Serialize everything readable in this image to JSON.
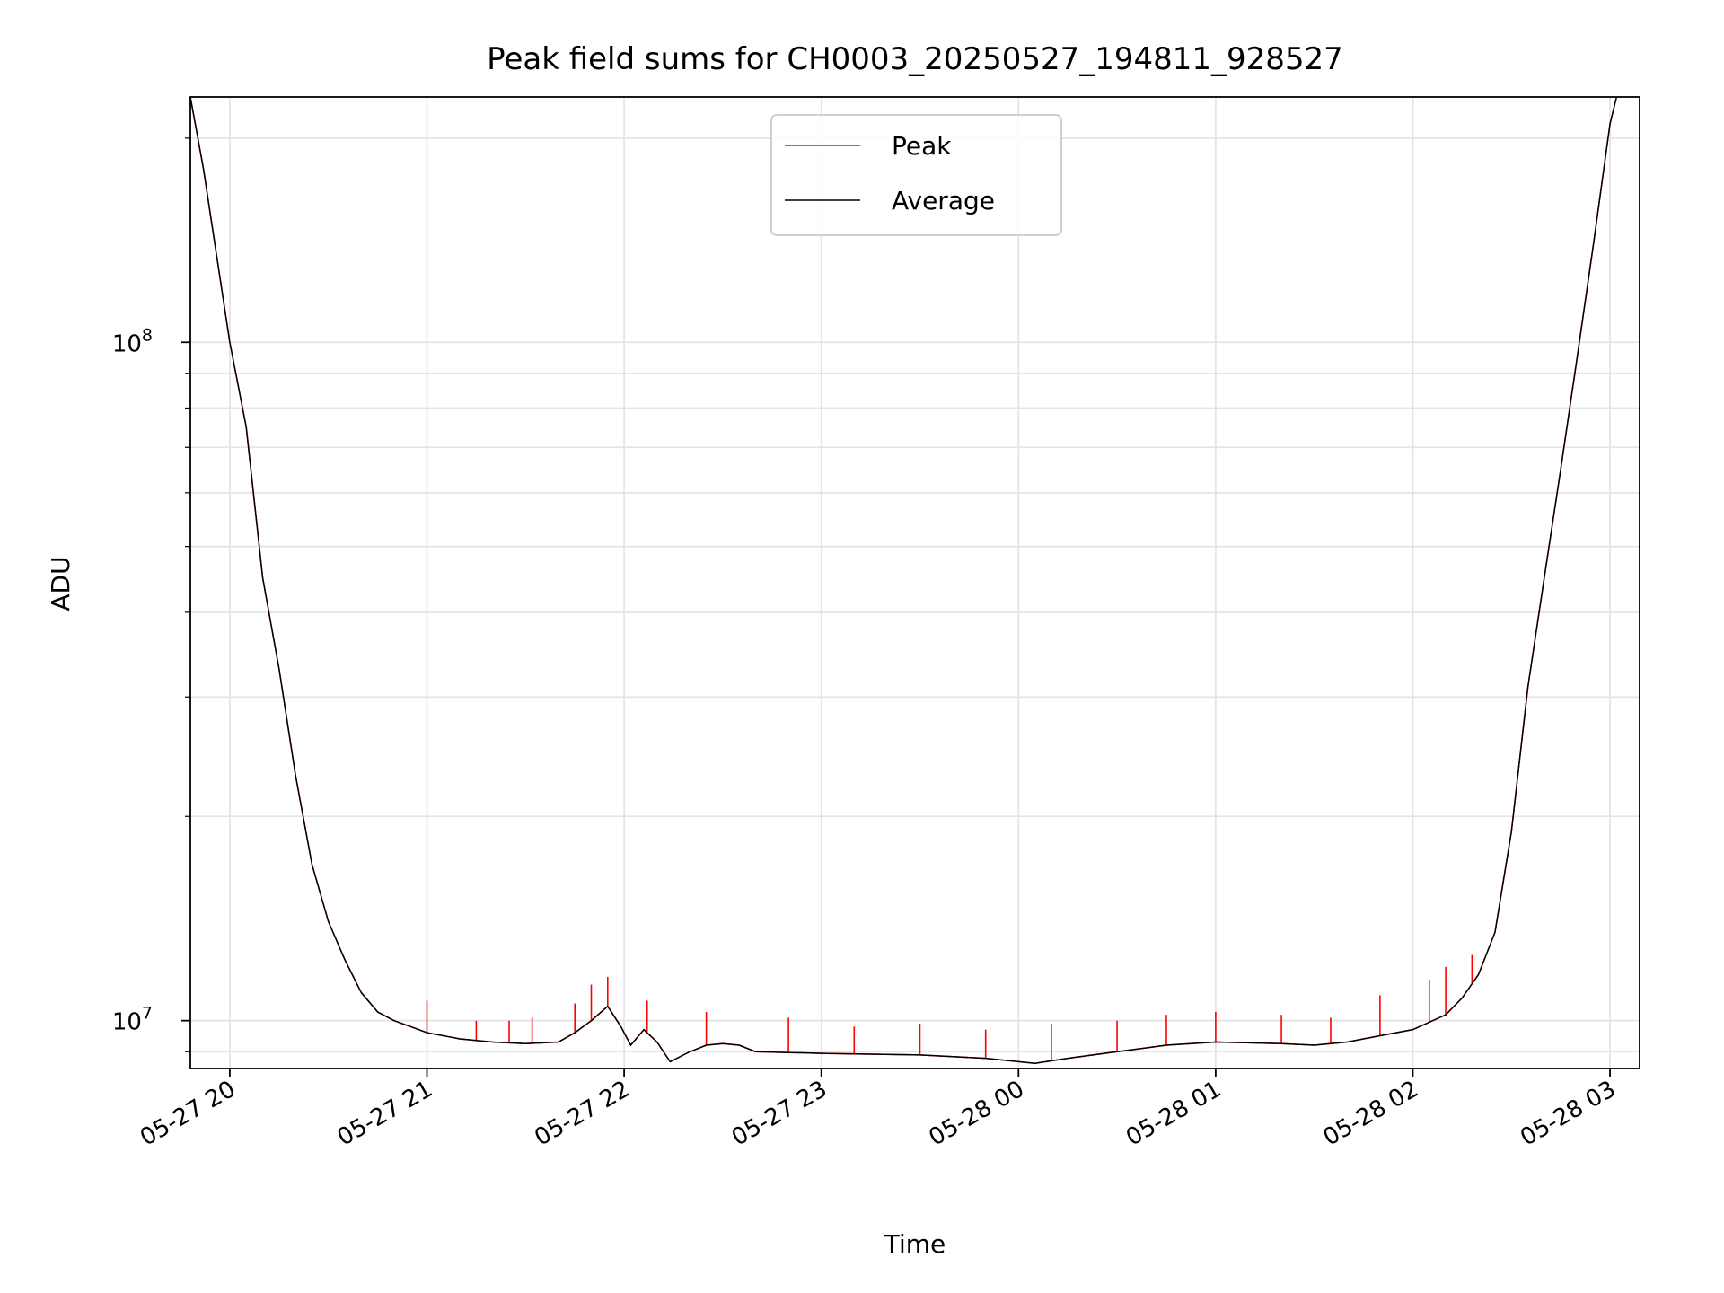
{
  "chart_data": {
    "type": "line",
    "title": "Peak field sums for CH0003_20250527_194811_928527",
    "xlabel": "Time",
    "ylabel": "ADU",
    "yscale": "log",
    "ylim": [
      8500000,
      230000000
    ],
    "xlim": [
      "2025-05-27 19:48",
      "2025-05-28 03:09"
    ],
    "grid": true,
    "legend_position": "top-center",
    "x_ticks": [
      "05-27 20",
      "05-27 21",
      "05-27 22",
      "05-27 23",
      "05-28 00",
      "05-28 01",
      "05-28 02",
      "05-28 03"
    ],
    "y_ticks": [
      {
        "base": "10",
        "exp": "8",
        "value": 100000000
      },
      {
        "base": "10",
        "exp": "7",
        "value": 10000000
      }
    ],
    "series": [
      {
        "name": "Peak",
        "color": "#ff0000",
        "spikes": [
          [
            "2025-05-27 21:00",
            10700000
          ],
          [
            "2025-05-27 21:15",
            10000000
          ],
          [
            "2025-05-27 21:25",
            10000000
          ],
          [
            "2025-05-27 21:32",
            10100000
          ],
          [
            "2025-05-27 21:45",
            10600000
          ],
          [
            "2025-05-27 21:50",
            11300000
          ],
          [
            "2025-05-27 21:55",
            11600000
          ],
          [
            "2025-05-27 22:07",
            10700000
          ],
          [
            "2025-05-27 22:25",
            10300000
          ],
          [
            "2025-05-27 22:50",
            10100000
          ],
          [
            "2025-05-27 23:10",
            9800000
          ],
          [
            "2025-05-27 23:30",
            9900000
          ],
          [
            "2025-05-27 23:50",
            9700000
          ],
          [
            "2025-05-28 00:10",
            9900000
          ],
          [
            "2025-05-28 00:30",
            10000000
          ],
          [
            "2025-05-28 00:45",
            10200000
          ],
          [
            "2025-05-28 01:00",
            10300000
          ],
          [
            "2025-05-28 01:20",
            10200000
          ],
          [
            "2025-05-28 01:35",
            10100000
          ],
          [
            "2025-05-28 01:50",
            10900000
          ],
          [
            "2025-05-28 02:05",
            11500000
          ],
          [
            "2025-05-28 02:10",
            12000000
          ],
          [
            "2025-05-28 02:18",
            12500000
          ]
        ]
      },
      {
        "name": "Average",
        "color": "#000000",
        "x": [
          "2025-05-27 19:48",
          "2025-05-27 19:52",
          "2025-05-27 20:00",
          "2025-05-27 20:05",
          "2025-05-27 20:10",
          "2025-05-27 20:15",
          "2025-05-27 20:20",
          "2025-05-27 20:25",
          "2025-05-27 20:30",
          "2025-05-27 20:35",
          "2025-05-27 20:40",
          "2025-05-27 20:45",
          "2025-05-27 20:50",
          "2025-05-27 20:55",
          "2025-05-27 21:00",
          "2025-05-27 21:10",
          "2025-05-27 21:20",
          "2025-05-27 21:30",
          "2025-05-27 21:40",
          "2025-05-27 21:45",
          "2025-05-27 21:50",
          "2025-05-27 21:55",
          "2025-05-27 21:59",
          "2025-05-27 22:02",
          "2025-05-27 22:06",
          "2025-05-27 22:10",
          "2025-05-27 22:14",
          "2025-05-27 22:20",
          "2025-05-27 22:25",
          "2025-05-27 22:30",
          "2025-05-27 22:35",
          "2025-05-27 22:40",
          "2025-05-27 23:00",
          "2025-05-27 23:30",
          "2025-05-27 23:50",
          "2025-05-28 00:00",
          "2025-05-28 00:05",
          "2025-05-28 00:15",
          "2025-05-28 00:30",
          "2025-05-28 00:45",
          "2025-05-28 01:00",
          "2025-05-28 01:20",
          "2025-05-28 01:30",
          "2025-05-28 01:40",
          "2025-05-28 01:50",
          "2025-05-28 02:00",
          "2025-05-28 02:10",
          "2025-05-28 02:15",
          "2025-05-28 02:20",
          "2025-05-28 02:25",
          "2025-05-28 02:30",
          "2025-05-28 02:35",
          "2025-05-28 02:40",
          "2025-05-28 02:45",
          "2025-05-28 02:50",
          "2025-05-28 02:55",
          "2025-05-28 03:00",
          "2025-05-28 03:02"
        ],
        "y": [
          230000000,
          180000000,
          100000000,
          75000000,
          45000000,
          33000000,
          23000000,
          17000000,
          14000000,
          12300000,
          11000000,
          10300000,
          10000000,
          9800000,
          9600000,
          9400000,
          9300000,
          9250000,
          9300000,
          9600000,
          10000000,
          10500000,
          9800000,
          9200000,
          9700000,
          9300000,
          8700000,
          9000000,
          9200000,
          9250000,
          9200000,
          9000000,
          8950000,
          8900000,
          8800000,
          8700000,
          8650000,
          8800000,
          9000000,
          9200000,
          9300000,
          9250000,
          9200000,
          9300000,
          9500000,
          9700000,
          10200000,
          10800000,
          11700000,
          13500000,
          19000000,
          31000000,
          45000000,
          65000000,
          95000000,
          140000000,
          210000000,
          230000000
        ]
      }
    ]
  }
}
